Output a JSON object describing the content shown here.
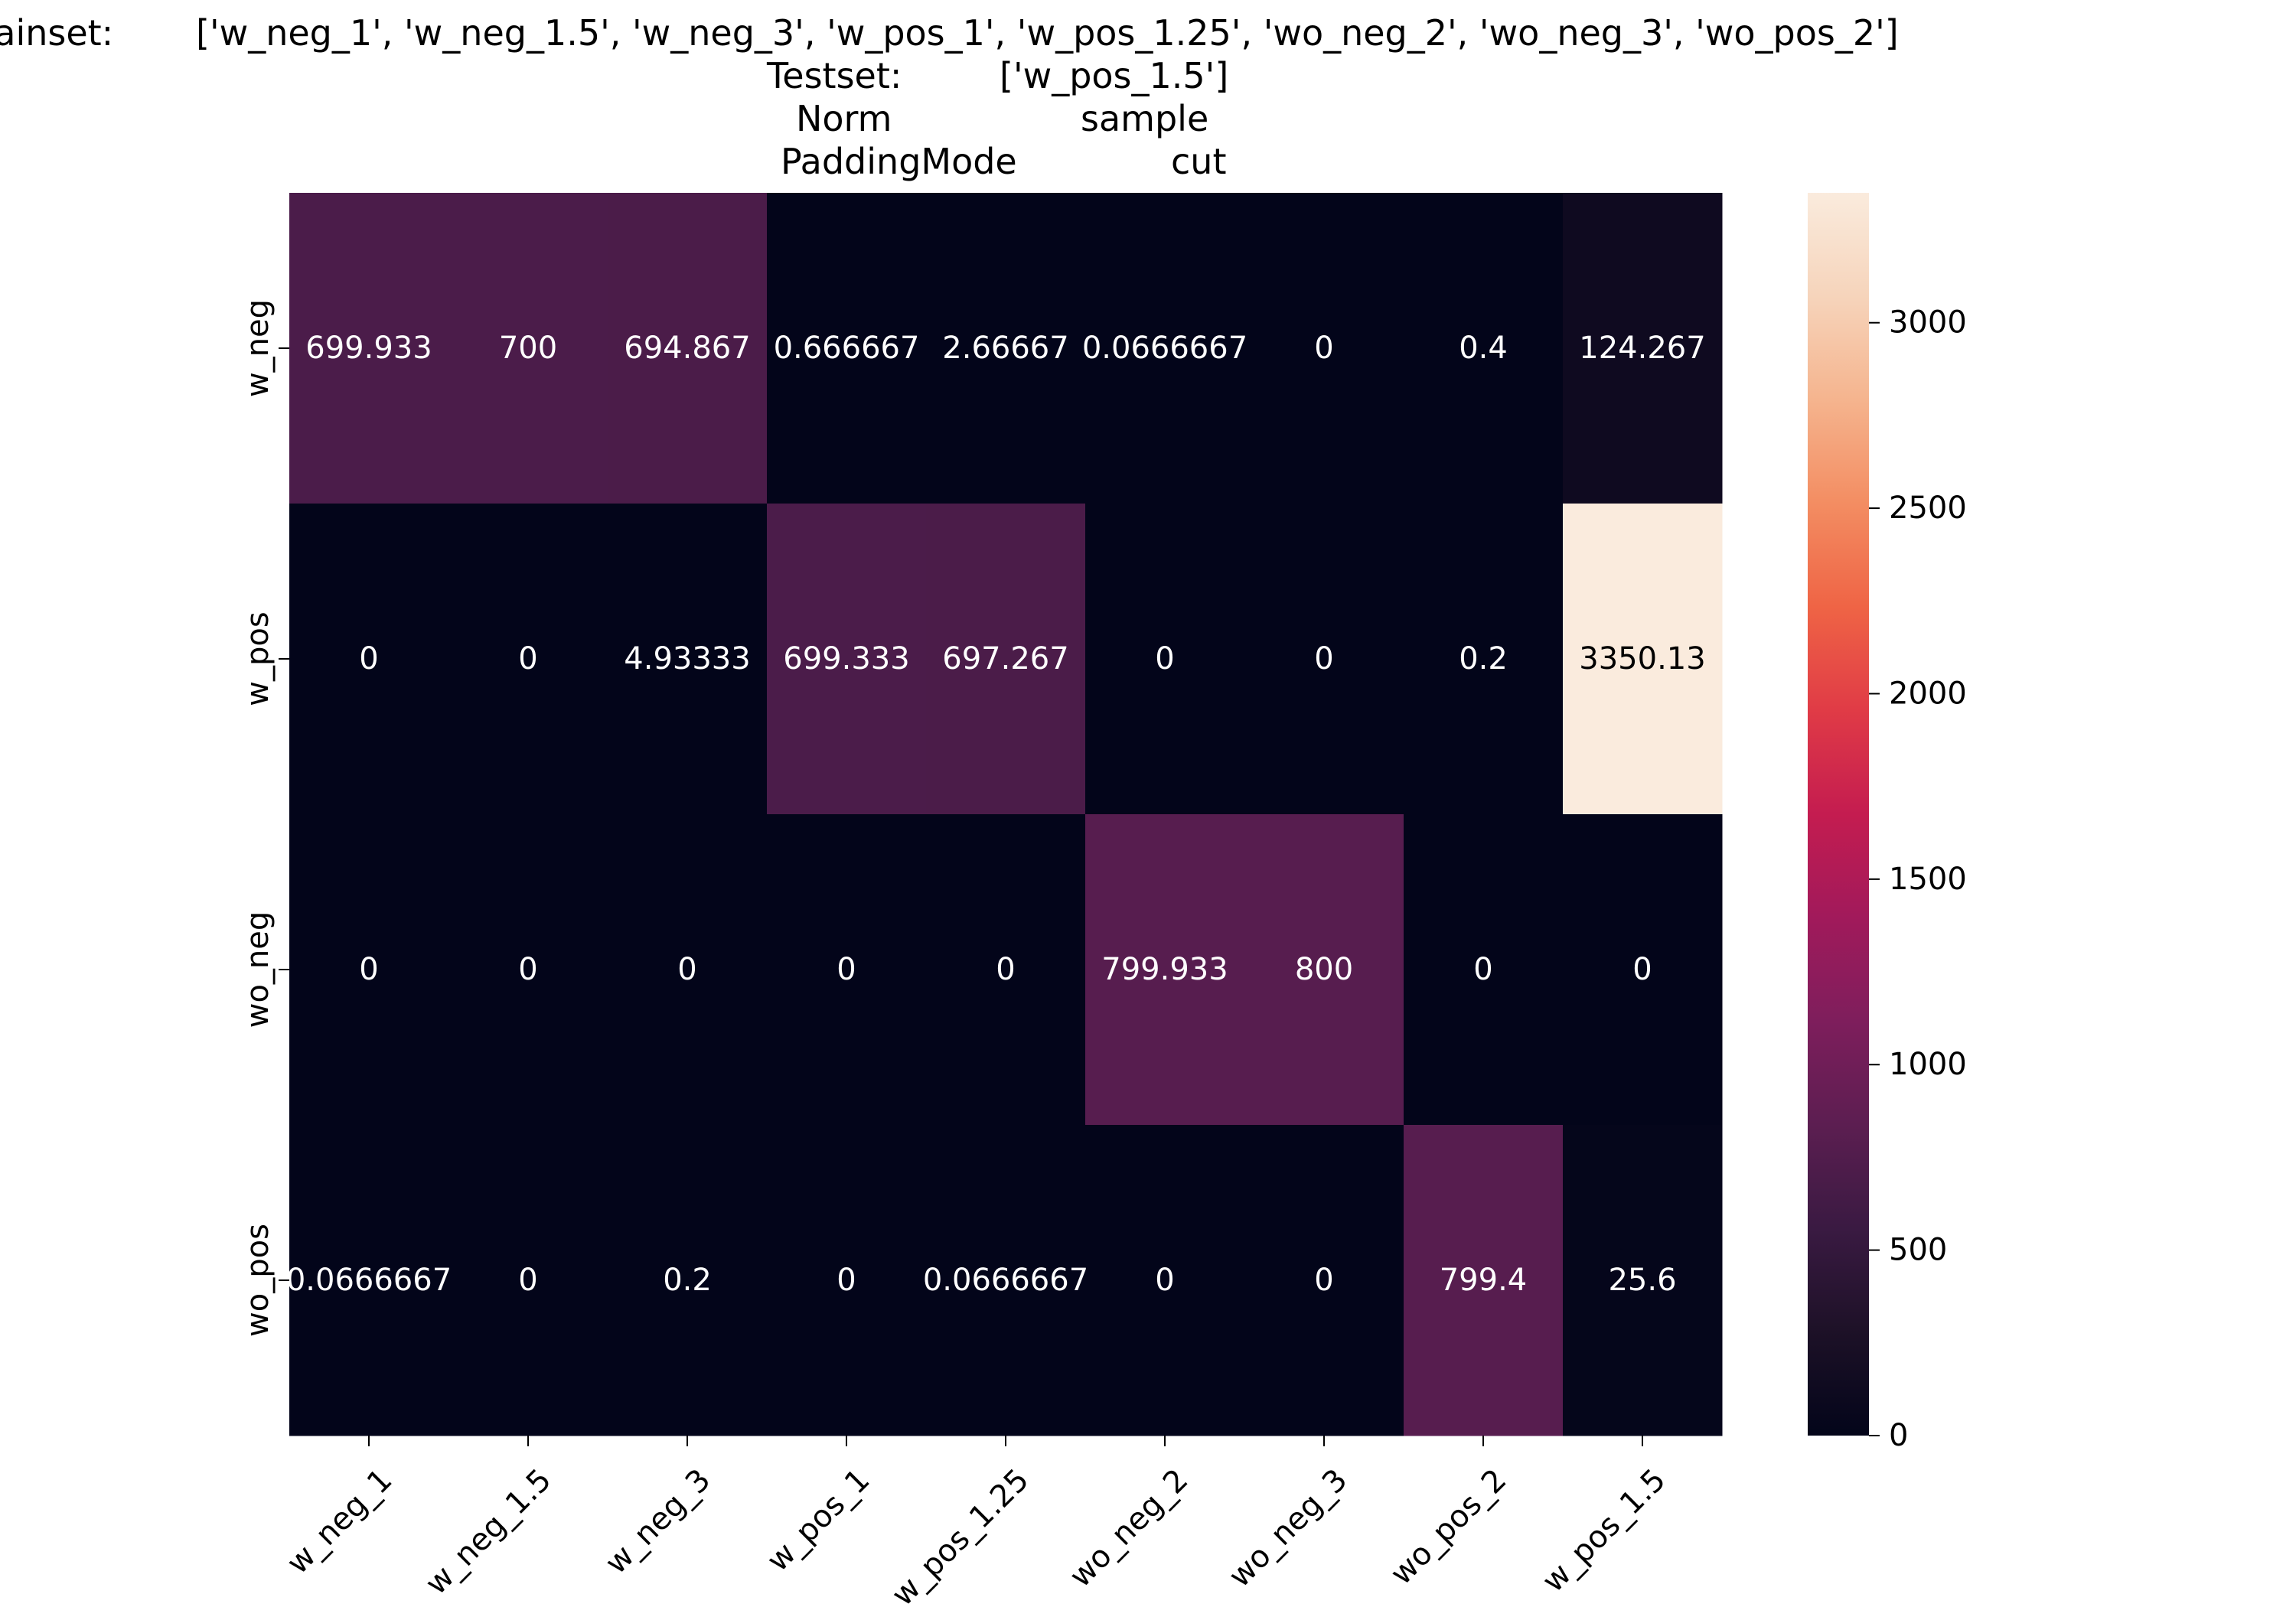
{
  "chart_data": {
    "type": "heatmap",
    "title": {
      "trainset_label": "Trainset:",
      "trainset_value": "['w_neg_1', 'w_neg_1.5', 'w_neg_3', 'w_pos_1', 'w_pos_1.25', 'wo_neg_2', 'wo_neg_3', 'wo_pos_2']",
      "testset_label": "Testset:",
      "testset_value": "['w_pos_1.5']",
      "norm_label": "Norm",
      "norm_value": "sample",
      "padding_label": "PaddingMode",
      "padding_value": "cut"
    },
    "x_categories": [
      "w_neg_1",
      "w_neg_1.5",
      "w_neg_3",
      "w_pos_1",
      "w_pos_1.25",
      "wo_neg_2",
      "wo_neg_3",
      "wo_pos_2",
      "w_pos_1.5"
    ],
    "y_categories": [
      "w_neg",
      "w_pos",
      "wo_neg",
      "wo_pos"
    ],
    "values": [
      [
        699.933,
        700,
        694.867,
        0.666667,
        2.66667,
        0.0666667,
        0,
        0.4,
        124.267
      ],
      [
        0,
        0,
        4.93333,
        699.333,
        697.267,
        0,
        0,
        0.2,
        3350.13
      ],
      [
        0,
        0,
        0,
        0,
        0,
        799.933,
        800,
        0,
        0
      ],
      [
        0.0666667,
        0,
        0.2,
        0,
        0.0666667,
        0,
        0,
        799.4,
        25.6
      ]
    ],
    "value_labels": [
      [
        "699.933",
        "700",
        "694.867",
        "0.666667",
        "2.66667",
        "0.0666667",
        "0",
        "0.4",
        "124.267"
      ],
      [
        "0",
        "0",
        "4.93333",
        "699.333",
        "697.267",
        "0",
        "0",
        "0.2",
        "3350.13"
      ],
      [
        "0",
        "0",
        "0",
        "0",
        "0",
        "799.933",
        "800",
        "0",
        "0"
      ],
      [
        "0.0666667",
        "0",
        "0.2",
        "0",
        "0.0666667",
        "0",
        "0",
        "799.4",
        "25.6"
      ]
    ],
    "colorbar": {
      "min": 0,
      "max": 3350.13,
      "ticks": [
        0,
        500,
        1000,
        1500,
        2000,
        2500,
        3000
      ],
      "colormap": "rocket",
      "colors": [
        "#03051a",
        "#1d1127",
        "#3a1a42",
        "#5c1e51",
        "#7e1e5c",
        "#a11a5b",
        "#c41c50",
        "#e03b46",
        "#ef6445",
        "#f38d62",
        "#f5b48e",
        "#f6d4bb",
        "#faebdd"
      ]
    },
    "text_color_dark": "#ffffff",
    "text_color_light": "#000000"
  }
}
